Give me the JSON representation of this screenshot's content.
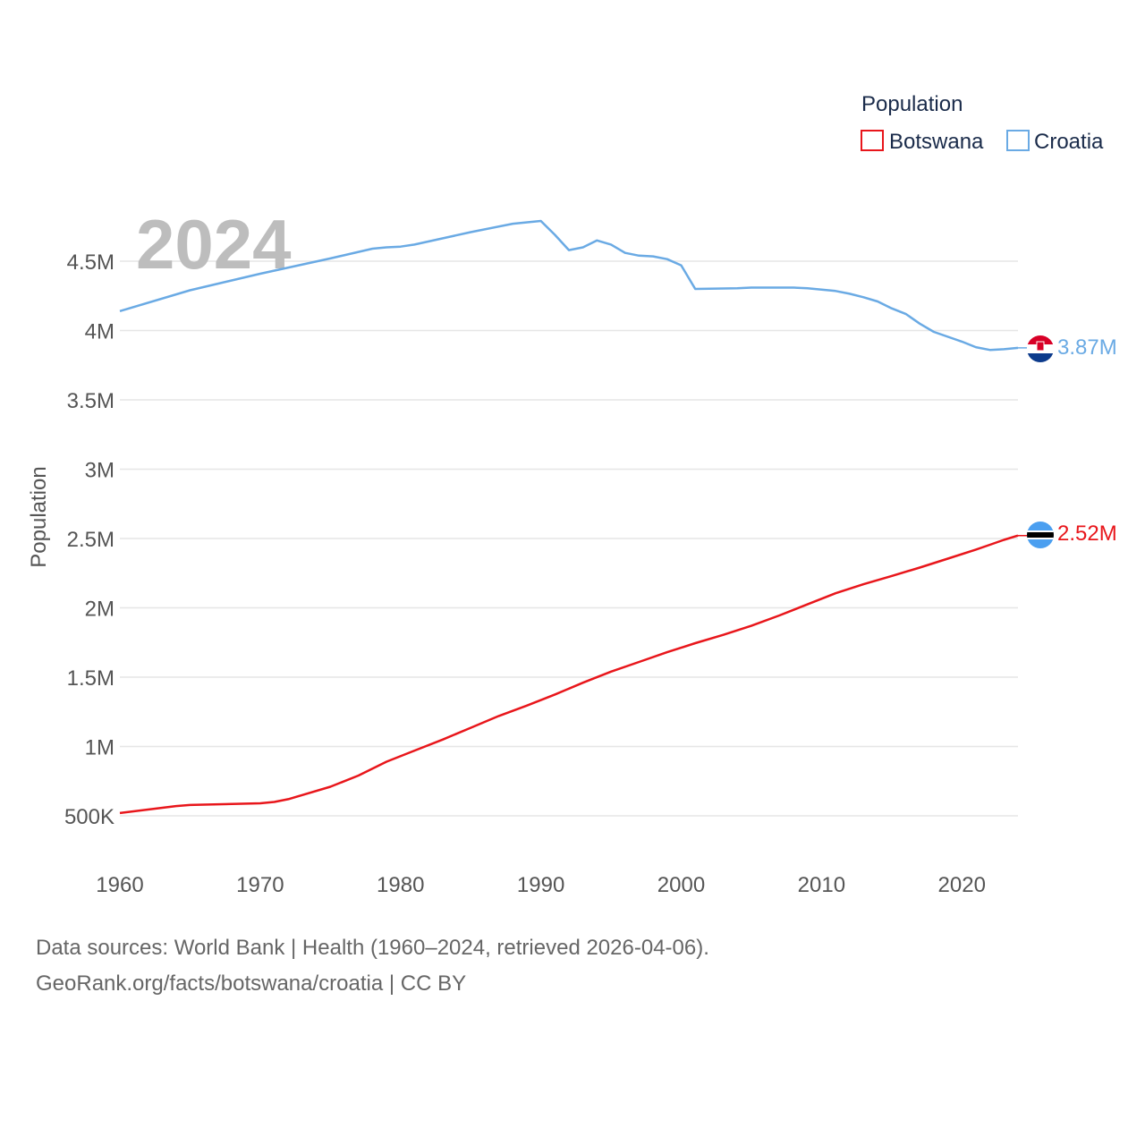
{
  "chart_data": {
    "type": "line",
    "title": "",
    "year_label": "2024",
    "xlabel": "",
    "ylabel": "Population",
    "xlim": [
      1960,
      2024
    ],
    "ylim": [
      250000,
      5000000
    ],
    "x_ticks": [
      1960,
      1970,
      1980,
      1990,
      2000,
      2010,
      2020
    ],
    "x_tick_labels": [
      "1960",
      "1970",
      "1980",
      "1990",
      "2000",
      "2010",
      "2020"
    ],
    "y_ticks": [
      500000,
      1000000,
      1500000,
      2000000,
      2500000,
      3000000,
      3500000,
      4000000,
      4500000
    ],
    "y_tick_labels": [
      "500K",
      "1M",
      "1.5M",
      "2M",
      "2.5M",
      "3M",
      "3.5M",
      "4M",
      "4.5M"
    ],
    "grid": true,
    "legend": {
      "title": "Population",
      "placement": "top-right"
    },
    "series": [
      {
        "name": "Botswana",
        "color": "#e8161b",
        "end_label": "2.52M",
        "flag_icon": "botswana-flag-icon",
        "x": [
          1960,
          1962,
          1964,
          1965,
          1968,
          1970,
          1971,
          1972,
          1973,
          1975,
          1977,
          1979,
          1981,
          1983,
          1985,
          1987,
          1989,
          1991,
          1993,
          1995,
          1997,
          1999,
          2001,
          2003,
          2005,
          2007,
          2009,
          2011,
          2013,
          2015,
          2017,
          2019,
          2021,
          2022,
          2023,
          2024
        ],
        "values": [
          520000,
          545000,
          570000,
          578000,
          585000,
          590000,
          600000,
          620000,
          650000,
          710000,
          790000,
          890000,
          970000,
          1050000,
          1135000,
          1220000,
          1295000,
          1375000,
          1460000,
          1540000,
          1610000,
          1680000,
          1745000,
          1805000,
          1870000,
          1945000,
          2025000,
          2105000,
          2170000,
          2230000,
          2290000,
          2355000,
          2420000,
          2455000,
          2490000,
          2521000
        ]
      },
      {
        "name": "Croatia",
        "color": "#6aaae4",
        "end_label": "3.87M",
        "flag_icon": "croatia-flag-icon",
        "x": [
          1960,
          1965,
          1970,
          1975,
          1978,
          1979,
          1980,
          1981,
          1985,
          1988,
          1990,
          1991,
          1992,
          1993,
          1994,
          1995,
          1996,
          1997,
          1998,
          1999,
          2000,
          2001,
          2004,
          2005,
          2008,
          2009,
          2011,
          2012,
          2013,
          2014,
          2015,
          2016,
          2017,
          2018,
          2020,
          2021,
          2022,
          2023,
          2024
        ],
        "values": [
          4140000,
          4290000,
          4410000,
          4520000,
          4590000,
          4600000,
          4605000,
          4620000,
          4710000,
          4770000,
          4790000,
          4690000,
          4580000,
          4600000,
          4650000,
          4620000,
          4560000,
          4540000,
          4535000,
          4515000,
          4470000,
          4300000,
          4305000,
          4310000,
          4310000,
          4305000,
          4285000,
          4265000,
          4240000,
          4210000,
          4160000,
          4120000,
          4050000,
          3990000,
          3920000,
          3880000,
          3860000,
          3865000,
          3875000
        ]
      }
    ]
  },
  "footer": {
    "line1": "Data sources: World Bank | Health (1960–2024, retrieved 2026-04-06).",
    "line2": "GeoRank.org/facts/botswana/croatia | CC BY"
  }
}
